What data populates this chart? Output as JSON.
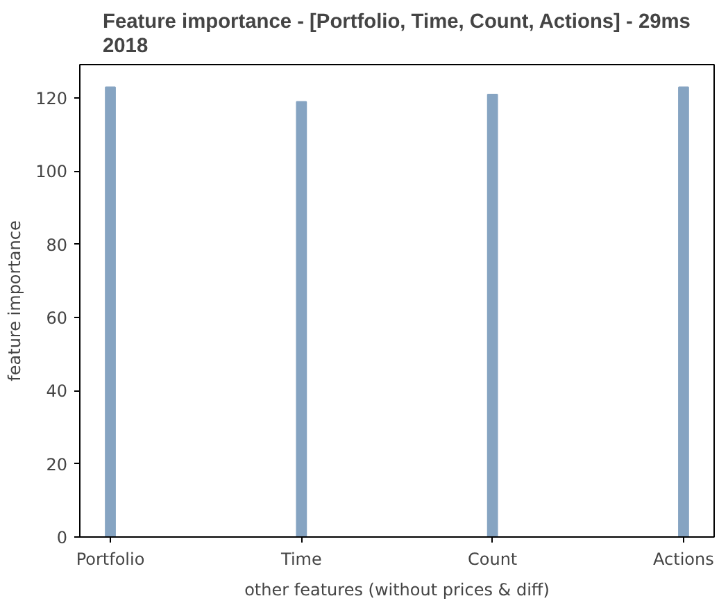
{
  "chart_data": {
    "type": "bar",
    "title": "Feature importance - [Portfolio, Time, Count, Actions] - 29ms\n2018",
    "xlabel": "other features (without prices & diff)",
    "ylabel": "feature importance",
    "categories": [
      "Portfolio",
      "Time",
      "Count",
      "Actions"
    ],
    "values": [
      123,
      119,
      121,
      123
    ],
    "color": "#86a4c2",
    "ylim": [
      0,
      129.15
    ],
    "yticks": [
      0,
      20,
      40,
      60,
      80,
      100,
      120
    ],
    "grid": false
  }
}
